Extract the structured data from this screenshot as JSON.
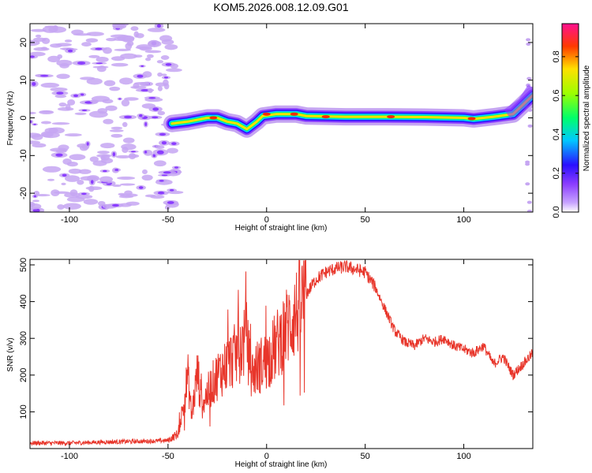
{
  "title": "KOM5.2026.008.12.09.G01",
  "chart_data": [
    {
      "type": "heatmap",
      "xlabel": "Height of straight line (km)",
      "ylabel": "Frequency (Hz)",
      "xlim": [
        -120,
        135
      ],
      "ylim": [
        -25,
        25
      ],
      "xticks": [
        -100,
        -50,
        0,
        50,
        100
      ],
      "yticks": [
        -20,
        -10,
        0,
        10,
        20
      ],
      "grid": false,
      "colorbar": {
        "label": "Normalized spectral amplitude",
        "range": [
          0,
          0.97
        ],
        "ticks": [
          "0.0",
          "0.2",
          "0.4",
          "0.6",
          "0.8"
        ],
        "colormap": "rainbow (purple to red to magenta)"
      },
      "ridge": [
        {
          "x": -48,
          "f": -1.5
        },
        {
          "x": -40,
          "f": -1.0
        },
        {
          "x": -30,
          "f": 0.0
        },
        {
          "x": -25,
          "f": 0.0
        },
        {
          "x": -20,
          "f": -1.0
        },
        {
          "x": -15,
          "f": -1.5
        },
        {
          "x": -10,
          "f": -3.0
        },
        {
          "x": -5,
          "f": -1.0
        },
        {
          "x": -2,
          "f": 0.5
        },
        {
          "x": 5,
          "f": 1.0
        },
        {
          "x": 15,
          "f": 1.0
        },
        {
          "x": 20,
          "f": 0.5
        },
        {
          "x": 40,
          "f": 0.3
        },
        {
          "x": 60,
          "f": 0.3
        },
        {
          "x": 80,
          "f": 0.2
        },
        {
          "x": 100,
          "f": 0.0
        },
        {
          "x": 105,
          "f": -0.3
        },
        {
          "x": 115,
          "f": 0.3
        },
        {
          "x": 125,
          "f": 1.0
        },
        {
          "x": 130,
          "f": 3.5
        },
        {
          "x": 135,
          "f": 6.0
        }
      ],
      "noise_region": {
        "x_from": -120,
        "x_to": -48,
        "amplitude": 0.05
      }
    },
    {
      "type": "line",
      "xlabel": "Height of straight line (km)",
      "ylabel": "SNR (v/v)",
      "xlim": [
        -120,
        135
      ],
      "ylim": [
        0,
        515
      ],
      "xticks": [
        -100,
        -50,
        0,
        50,
        100
      ],
      "yticks": [
        100,
        200,
        300,
        400,
        500
      ],
      "grid": false,
      "series": [
        {
          "name": "SNR",
          "color": "#e8362b",
          "x": [
            -120,
            -100,
            -80,
            -60,
            -50,
            -45,
            -42,
            -40,
            -38,
            -35,
            -33,
            -30,
            -25,
            -20,
            -15,
            -10,
            -8,
            -5,
            0,
            5,
            10,
            15,
            20,
            25,
            30,
            35,
            40,
            45,
            50,
            55,
            60,
            65,
            70,
            75,
            80,
            85,
            90,
            95,
            100,
            105,
            110,
            115,
            120,
            125,
            130,
            135
          ],
          "y": [
            15,
            15,
            18,
            20,
            22,
            40,
            120,
            200,
            90,
            210,
            120,
            150,
            200,
            230,
            260,
            300,
            200,
            220,
            240,
            280,
            330,
            370,
            420,
            460,
            480,
            490,
            495,
            488,
            480,
            440,
            380,
            320,
            290,
            280,
            300,
            290,
            300,
            280,
            270,
            260,
            280,
            230,
            250,
            200,
            230,
            260
          ]
        }
      ]
    }
  ]
}
